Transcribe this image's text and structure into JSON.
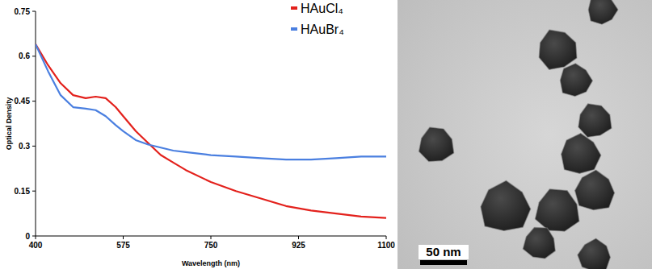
{
  "chart_data": {
    "type": "line",
    "x_label": "Wavelength (nm)",
    "y_label": "Optical Density",
    "x": [
      400,
      425,
      450,
      475,
      500,
      520,
      540,
      560,
      575,
      600,
      625,
      650,
      675,
      700,
      750,
      800,
      850,
      900,
      950,
      1000,
      1050,
      1100
    ],
    "series": [
      {
        "name": "HAuCl₄",
        "color": "#e3211c",
        "values": [
          0.64,
          0.57,
          0.51,
          0.47,
          0.46,
          0.465,
          0.46,
          0.43,
          0.4,
          0.35,
          0.31,
          0.27,
          0.245,
          0.22,
          0.18,
          0.15,
          0.125,
          0.1,
          0.085,
          0.075,
          0.065,
          0.06
        ]
      },
      {
        "name": "HAuBr₄",
        "color": "#4a7fe0",
        "values": [
          0.64,
          0.55,
          0.47,
          0.43,
          0.425,
          0.42,
          0.4,
          0.37,
          0.35,
          0.32,
          0.305,
          0.295,
          0.285,
          0.28,
          0.27,
          0.265,
          0.26,
          0.255,
          0.255,
          0.26,
          0.265,
          0.265
        ]
      }
    ],
    "xlim": [
      400,
      1100
    ],
    "xticks": [
      400,
      575,
      750,
      925,
      1100
    ],
    "ylim": [
      0,
      0.75
    ],
    "yticks": [
      0,
      0.15,
      0.3,
      0.45,
      0.6,
      0.75
    ],
    "grid": false,
    "legend": "upper right"
  },
  "micrograph": {
    "scale_bar": "50 nm"
  }
}
